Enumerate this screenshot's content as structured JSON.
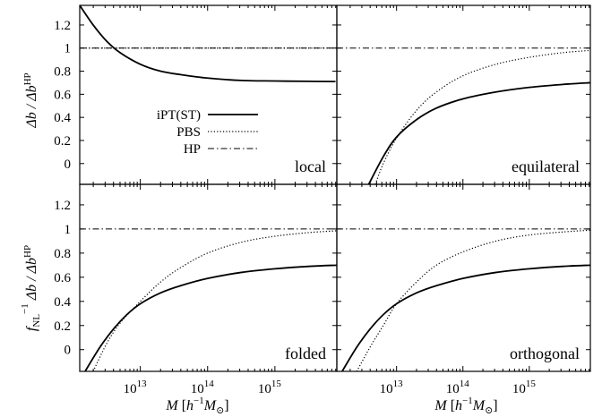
{
  "chart_data": {
    "type": "line",
    "xscale": "log",
    "xlim_log10": [
      12.1,
      15.92
    ],
    "ylim": [
      -0.18,
      1.37
    ],
    "xticks": [
      {
        "value": 13,
        "label": "10",
        "exp": "13"
      },
      {
        "value": 14,
        "label": "10",
        "exp": "14"
      },
      {
        "value": 15,
        "label": "10",
        "exp": "15"
      }
    ],
    "yticks": [
      {
        "value": 0,
        "label": "0"
      },
      {
        "value": 0.2,
        "label": "0.2"
      },
      {
        "value": 0.4,
        "label": "0.4"
      },
      {
        "value": 0.6,
        "label": "0.6"
      },
      {
        "value": 0.8,
        "label": "0.8"
      },
      {
        "value": 1.0,
        "label": "1"
      },
      {
        "value": 1.2,
        "label": "1.2"
      }
    ],
    "xlabel": {
      "main": "M [h",
      "sup": "−1",
      "mid": "M",
      "sub": "⊙",
      "end": "]"
    },
    "ylabel_top": {
      "pre": "Δb / Δb",
      "sup": "HP"
    },
    "ylabel_bottom": {
      "f": "f",
      "sub": "NL",
      "sup": "−1",
      "rest": " Δb / Δb",
      "sup2": "HP"
    },
    "legend": [
      {
        "name": "iPT(ST)",
        "style": "solid"
      },
      {
        "name": "PBS",
        "style": "dotted"
      },
      {
        "name": "HP",
        "style": "dashdot"
      }
    ],
    "grid": false,
    "legend_position": "center-left of top-left panel",
    "panels": [
      {
        "title": "local",
        "series": [
          {
            "name": "iPT(ST)",
            "x": [
              12.1,
              12.3,
              12.5,
              12.7,
              13.0,
              13.3,
              13.6,
              14.0,
              14.5,
              15.0,
              15.5,
              15.9
            ],
            "y": [
              1.37,
              1.2,
              1.06,
              0.96,
              0.86,
              0.8,
              0.77,
              0.74,
              0.72,
              0.715,
              0.712,
              0.71
            ]
          },
          {
            "name": "PBS",
            "x": [
              12.1,
              15.92
            ],
            "y": [
              1.0,
              1.0
            ]
          },
          {
            "name": "HP",
            "x": [
              12.1,
              15.92
            ],
            "y": [
              1.0,
              1.0
            ]
          }
        ]
      },
      {
        "title": "equilateral",
        "series": [
          {
            "name": "iPT(ST)",
            "x": [
              12.58,
              12.8,
              13.0,
              13.3,
              13.6,
              14.0,
              14.5,
              15.0,
              15.5,
              15.92
            ],
            "y": [
              -0.18,
              0.06,
              0.23,
              0.38,
              0.48,
              0.56,
              0.62,
              0.66,
              0.685,
              0.7
            ]
          },
          {
            "name": "PBS",
            "x": [
              12.68,
              12.8,
              13.0,
              13.3,
              13.6,
              14.0,
              14.5,
              15.0,
              15.5,
              15.92
            ],
            "y": [
              -0.18,
              0.0,
              0.22,
              0.46,
              0.62,
              0.76,
              0.86,
              0.92,
              0.96,
              0.98
            ]
          },
          {
            "name": "HP",
            "x": [
              12.1,
              15.92
            ],
            "y": [
              1.0,
              1.0
            ]
          }
        ]
      },
      {
        "title": "folded",
        "series": [
          {
            "name": "iPT(ST)",
            "x": [
              12.18,
              12.4,
              12.6,
              12.8,
              13.0,
              13.3,
              13.6,
              14.0,
              14.5,
              15.0,
              15.5,
              15.92
            ],
            "y": [
              -0.18,
              0.02,
              0.17,
              0.29,
              0.38,
              0.47,
              0.53,
              0.59,
              0.64,
              0.67,
              0.69,
              0.7
            ]
          },
          {
            "name": "PBS",
            "x": [
              12.3,
              12.5,
              12.7,
              13.0,
              13.3,
              13.6,
              14.0,
              14.5,
              15.0,
              15.5,
              15.92
            ],
            "y": [
              -0.18,
              0.05,
              0.22,
              0.4,
              0.56,
              0.68,
              0.8,
              0.89,
              0.94,
              0.97,
              0.985
            ]
          },
          {
            "name": "HP",
            "x": [
              12.1,
              15.92
            ],
            "y": [
              1.0,
              1.0
            ]
          }
        ]
      },
      {
        "title": "orthogonal",
        "series": [
          {
            "name": "iPT(ST)",
            "x": [
              12.18,
              12.4,
              12.6,
              12.8,
              13.0,
              13.3,
              13.6,
              14.0,
              14.5,
              15.0,
              15.5,
              15.92
            ],
            "y": [
              -0.18,
              0.02,
              0.17,
              0.29,
              0.38,
              0.47,
              0.53,
              0.59,
              0.64,
              0.67,
              0.69,
              0.7
            ]
          },
          {
            "name": "PBS",
            "x": [
              12.4,
              12.6,
              12.8,
              13.0,
              13.3,
              13.6,
              14.0,
              14.5,
              15.0,
              15.5,
              15.92
            ],
            "y": [
              -0.18,
              0.02,
              0.2,
              0.38,
              0.56,
              0.7,
              0.81,
              0.9,
              0.95,
              0.975,
              0.99
            ]
          },
          {
            "name": "HP",
            "x": [
              12.1,
              15.92
            ],
            "y": [
              1.0,
              1.0
            ]
          }
        ]
      }
    ]
  }
}
